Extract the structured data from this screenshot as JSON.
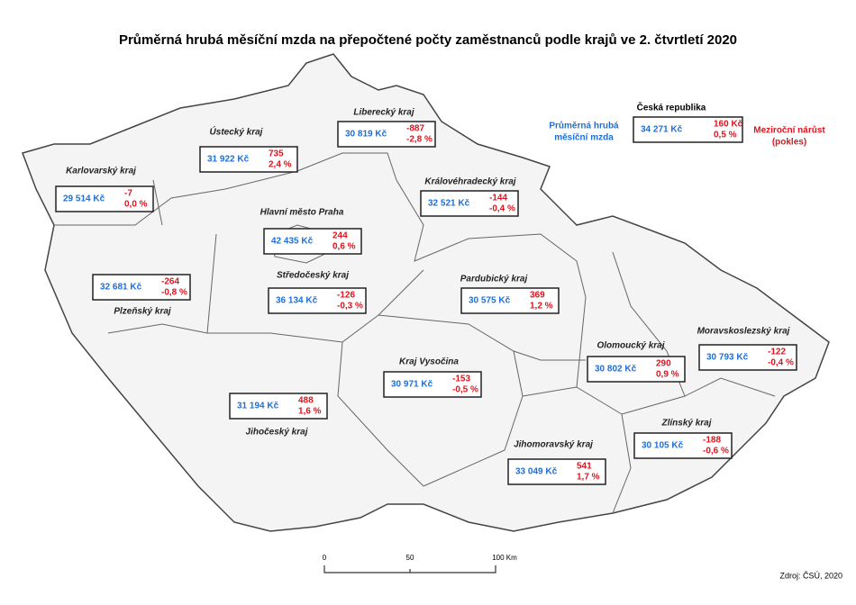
{
  "title": "Průměrná hrubá měsíční mzda na přepočtené počty zaměstnanců podle krajů ve 2. čtvrtletí 2020",
  "national": {
    "name": "Česká republika",
    "wage": "34 271 Kč",
    "change": "160 Kč",
    "pct": "0,5 %",
    "wage_label": [
      "Průměrná hrubá",
      "měsíční mzda"
    ],
    "change_label": [
      "Meziroční nárůst",
      "(pokles)"
    ]
  },
  "regions": [
    {
      "name": "Karlovarský kraj",
      "wage": "29 514 Kč",
      "change": "-7",
      "pct": "0,0 %"
    },
    {
      "name": "Ústecký kraj",
      "wage": "31 922 Kč",
      "change": "735",
      "pct": "2,4 %"
    },
    {
      "name": "Liberecký kraj",
      "wage": "30 819 Kč",
      "change": "-887",
      "pct": "-2,8 %"
    },
    {
      "name": "Královéhradecký kraj",
      "wage": "32 521 Kč",
      "change": "-144",
      "pct": "-0,4 %"
    },
    {
      "name": "Hlavní město Praha",
      "wage": "42 435 Kč",
      "change": "244",
      "pct": "0,6 %"
    },
    {
      "name": "Středočeský kraj",
      "wage": "36 134 Kč",
      "change": "-126",
      "pct": "-0,3 %"
    },
    {
      "name": "Plzeňský kraj",
      "wage": "32 681 Kč",
      "change": "-264",
      "pct": "-0,8 %"
    },
    {
      "name": "Pardubický kraj",
      "wage": "30 575 Kč",
      "change": "369",
      "pct": "1,2 %"
    },
    {
      "name": "Kraj Vysočina",
      "wage": "30 971 Kč",
      "change": "-153",
      "pct": "-0,5 %"
    },
    {
      "name": "Jihočeský kraj",
      "wage": "31 194 Kč",
      "change": "488",
      "pct": "1,6 %"
    },
    {
      "name": "Olomoucký kraj",
      "wage": "30 802 Kč",
      "change": "290",
      "pct": "0,9 %"
    },
    {
      "name": "Moravskoslezský kraj",
      "wage": "30 793 Kč",
      "change": "-122",
      "pct": "-0,4 %"
    },
    {
      "name": "Zlínský kraj",
      "wage": "30 105 Kč",
      "change": "-188",
      "pct": "-0,6 %"
    },
    {
      "name": "Jihomoravský kraj",
      "wage": "33 049 Kč",
      "change": "541",
      "pct": "1,7 %"
    }
  ],
  "scale": [
    "0",
    "50",
    "100 Km"
  ],
  "source": "Zdroj: ČSÚ, 2020"
}
